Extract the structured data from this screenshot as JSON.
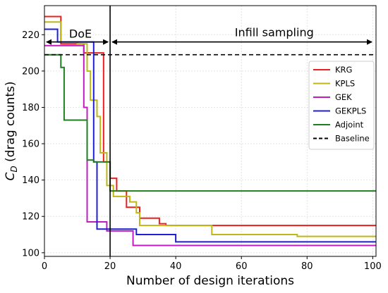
{
  "chart_data": {
    "type": "line",
    "step": true,
    "xlabel": "Number of design iterations",
    "ylabel_main": "C",
    "ylabel_sub": "D",
    "ylabel_rest": " (drag counts)",
    "xlim": [
      0,
      101
    ],
    "ylim": [
      98,
      236
    ],
    "xticks": [
      0,
      20,
      40,
      60,
      80,
      100
    ],
    "yticks": [
      100,
      120,
      140,
      160,
      180,
      200,
      220
    ],
    "grid": true,
    "legend_position": "upper-right",
    "series": [
      {
        "name": "KRG",
        "color": "#e8211d",
        "x": [
          0,
          5,
          5,
          12,
          12,
          17,
          17,
          18,
          18,
          19,
          19,
          20,
          20,
          22,
          22,
          25,
          25,
          29,
          29,
          33,
          33,
          35,
          35,
          37,
          37,
          101
        ],
        "y": [
          230,
          230,
          215,
          215,
          210,
          210,
          210,
          210,
          150,
          150,
          150,
          150,
          141,
          141,
          134,
          134,
          125,
          125,
          119,
          119,
          119,
          119,
          116,
          116,
          115,
          115
        ]
      },
      {
        "name": "KPLS",
        "color": "#bdb816",
        "x": [
          0,
          5,
          5,
          10,
          10,
          13,
          13,
          14,
          14,
          16,
          16,
          17,
          17,
          19,
          19,
          21,
          21,
          26,
          26,
          28,
          28,
          29,
          29,
          42,
          42,
          51,
          51,
          77,
          77,
          101
        ],
        "y": [
          227,
          227,
          216,
          216,
          215,
          215,
          200,
          200,
          184,
          184,
          175,
          175,
          155,
          155,
          137,
          137,
          131,
          131,
          128,
          128,
          122,
          122,
          115,
          115,
          115,
          115,
          110,
          110,
          109,
          109
        ]
      },
      {
        "name": "GEK",
        "color": "#c01cc2",
        "x": [
          0,
          12,
          12,
          13,
          13,
          19,
          19,
          27,
          27,
          101
        ],
        "y": [
          214,
          214,
          180,
          180,
          117,
          117,
          112,
          112,
          104,
          104
        ]
      },
      {
        "name": "GEKPLS",
        "color": "#1f1fd6",
        "x": [
          0,
          4,
          4,
          15,
          15,
          16,
          16,
          20,
          20,
          28,
          28,
          40,
          40,
          101
        ],
        "y": [
          223,
          223,
          216,
          216,
          150,
          150,
          113,
          113,
          113,
          113,
          110,
          110,
          106,
          106
        ]
      },
      {
        "name": "Adjoint",
        "color": "#1e7f1e",
        "x": [
          0,
          5,
          5,
          6,
          6,
          13,
          13,
          15,
          15,
          20,
          20,
          101
        ],
        "y": [
          209,
          209,
          202,
          202,
          173,
          173,
          151,
          151,
          150,
          150,
          134,
          134
        ]
      },
      {
        "name": "Baseline",
        "color": "#000000",
        "dashed": true,
        "x": [
          0,
          101
        ],
        "y": [
          209,
          209
        ]
      }
    ],
    "vline_x": 20,
    "annotations": {
      "doe_label": "DoE",
      "infill_label": "Infill sampling",
      "arrow_y": 216,
      "doe_range": [
        0,
        20
      ],
      "infill_range": [
        20,
        101
      ]
    }
  }
}
